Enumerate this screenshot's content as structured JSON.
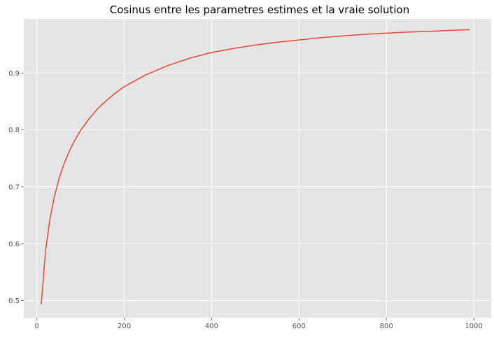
{
  "chart_data": {
    "type": "line",
    "title": "Cosinus entre les parametres estimes et la vraie solution",
    "xlabel": "",
    "ylabel": "",
    "xlim": [
      -30,
      1040
    ],
    "ylim": [
      0.47,
      0.995
    ],
    "grid": true,
    "background": "#e5e5e5",
    "x_ticks": [
      {
        "value": 0,
        "label": "0"
      },
      {
        "value": 200,
        "label": "200"
      },
      {
        "value": 400,
        "label": "400"
      },
      {
        "value": 600,
        "label": "600"
      },
      {
        "value": 800,
        "label": "800"
      },
      {
        "value": 1000,
        "label": "1000"
      }
    ],
    "y_ticks": [
      {
        "value": 0.5,
        "label": "0.5"
      },
      {
        "value": 0.6,
        "label": "0.6"
      },
      {
        "value": 0.7,
        "label": "0.7"
      },
      {
        "value": 0.8,
        "label": "0.8"
      },
      {
        "value": 0.9,
        "label": "0.9"
      }
    ],
    "series": [
      {
        "color": "#e24a33",
        "x": [
          10,
          20,
          30,
          40,
          50,
          60,
          70,
          80,
          90,
          100,
          120,
          140,
          160,
          180,
          200,
          250,
          300,
          350,
          400,
          450,
          500,
          550,
          600,
          650,
          700,
          750,
          800,
          850,
          900,
          950,
          990
        ],
        "y": [
          0.494,
          0.589,
          0.644,
          0.683,
          0.712,
          0.736,
          0.755,
          0.772,
          0.786,
          0.799,
          0.82,
          0.838,
          0.852,
          0.865,
          0.876,
          0.897,
          0.913,
          0.926,
          0.936,
          0.943,
          0.949,
          0.954,
          0.958,
          0.962,
          0.965,
          0.968,
          0.97,
          0.972,
          0.973,
          0.975,
          0.976
        ]
      }
    ]
  }
}
